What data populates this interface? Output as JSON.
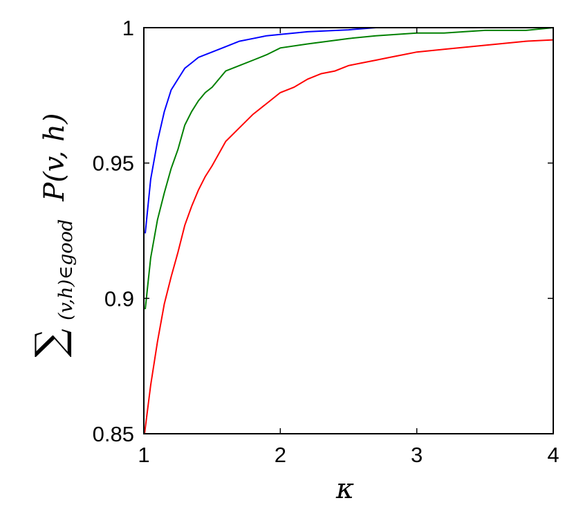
{
  "chart_data": {
    "type": "line",
    "title": "",
    "xlabel": "κ",
    "ylabel_parts": {
      "sum": "∑",
      "subscript": "(v,h)∈good",
      "expr": "P(v, h)"
    },
    "xlim": [
      1,
      4
    ],
    "ylim": [
      0.85,
      1.0
    ],
    "x_ticks": [
      {
        "value": 1,
        "label": "1"
      },
      {
        "value": 2,
        "label": "2"
      },
      {
        "value": 3,
        "label": "3"
      },
      {
        "value": 4,
        "label": "4"
      }
    ],
    "y_ticks": [
      {
        "value": 0.85,
        "label": "0.85"
      },
      {
        "value": 0.9,
        "label": "0.9"
      },
      {
        "value": 0.95,
        "label": "0.95"
      },
      {
        "value": 1.0,
        "label": "1"
      }
    ],
    "grid": false,
    "legend": "none",
    "series": [
      {
        "color": "#0000ff",
        "points": [
          [
            1.01,
            0.924
          ],
          [
            1.05,
            0.944
          ],
          [
            1.1,
            0.958
          ],
          [
            1.15,
            0.969
          ],
          [
            1.2,
            0.977
          ],
          [
            1.25,
            0.981
          ],
          [
            1.3,
            0.985
          ],
          [
            1.35,
            0.987
          ],
          [
            1.4,
            0.989
          ],
          [
            1.45,
            0.99
          ],
          [
            1.5,
            0.991
          ],
          [
            1.6,
            0.993
          ],
          [
            1.7,
            0.995
          ],
          [
            1.8,
            0.996
          ],
          [
            1.9,
            0.997
          ],
          [
            2.0,
            0.9975
          ],
          [
            2.2,
            0.9985
          ],
          [
            2.5,
            0.9992
          ],
          [
            2.7,
            1.0
          ],
          [
            3.0,
            1.0
          ],
          [
            3.5,
            1.0
          ],
          [
            4.0,
            1.0
          ]
        ]
      },
      {
        "color": "#008000",
        "points": [
          [
            1.01,
            0.896
          ],
          [
            1.05,
            0.915
          ],
          [
            1.1,
            0.929
          ],
          [
            1.15,
            0.939
          ],
          [
            1.2,
            0.948
          ],
          [
            1.25,
            0.955
          ],
          [
            1.3,
            0.964
          ],
          [
            1.35,
            0.969
          ],
          [
            1.4,
            0.973
          ],
          [
            1.45,
            0.976
          ],
          [
            1.5,
            0.978
          ],
          [
            1.6,
            0.984
          ],
          [
            1.7,
            0.986
          ],
          [
            1.8,
            0.988
          ],
          [
            1.9,
            0.99
          ],
          [
            2.0,
            0.9925
          ],
          [
            2.2,
            0.994
          ],
          [
            2.5,
            0.996
          ],
          [
            2.7,
            0.997
          ],
          [
            3.0,
            0.998
          ],
          [
            3.2,
            0.998
          ],
          [
            3.5,
            0.999
          ],
          [
            3.8,
            0.999
          ],
          [
            4.0,
            1.0
          ]
        ]
      },
      {
        "color": "#ff0000",
        "points": [
          [
            1.005,
            0.85
          ],
          [
            1.05,
            0.868
          ],
          [
            1.1,
            0.884
          ],
          [
            1.15,
            0.898
          ],
          [
            1.2,
            0.908
          ],
          [
            1.25,
            0.917
          ],
          [
            1.3,
            0.927
          ],
          [
            1.35,
            0.934
          ],
          [
            1.4,
            0.94
          ],
          [
            1.45,
            0.945
          ],
          [
            1.5,
            0.949
          ],
          [
            1.6,
            0.958
          ],
          [
            1.7,
            0.963
          ],
          [
            1.8,
            0.968
          ],
          [
            1.9,
            0.972
          ],
          [
            2.0,
            0.976
          ],
          [
            2.1,
            0.978
          ],
          [
            2.2,
            0.981
          ],
          [
            2.3,
            0.983
          ],
          [
            2.4,
            0.984
          ],
          [
            2.5,
            0.986
          ],
          [
            2.6,
            0.987
          ],
          [
            2.7,
            0.988
          ],
          [
            2.8,
            0.989
          ],
          [
            2.9,
            0.99
          ],
          [
            3.0,
            0.991
          ],
          [
            3.2,
            0.992
          ],
          [
            3.4,
            0.993
          ],
          [
            3.6,
            0.994
          ],
          [
            3.8,
            0.995
          ],
          [
            4.0,
            0.9955
          ]
        ]
      }
    ]
  }
}
